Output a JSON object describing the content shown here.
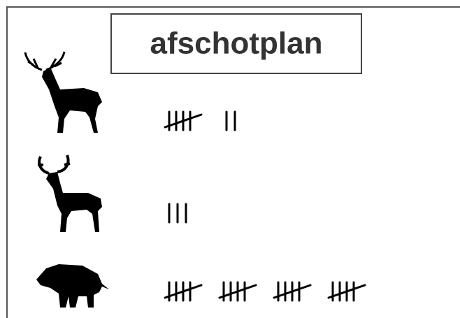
{
  "title": "afschotplan",
  "rows": [
    {
      "count": 7
    },
    {
      "count": 3
    },
    {
      "count": 20
    }
  ]
}
